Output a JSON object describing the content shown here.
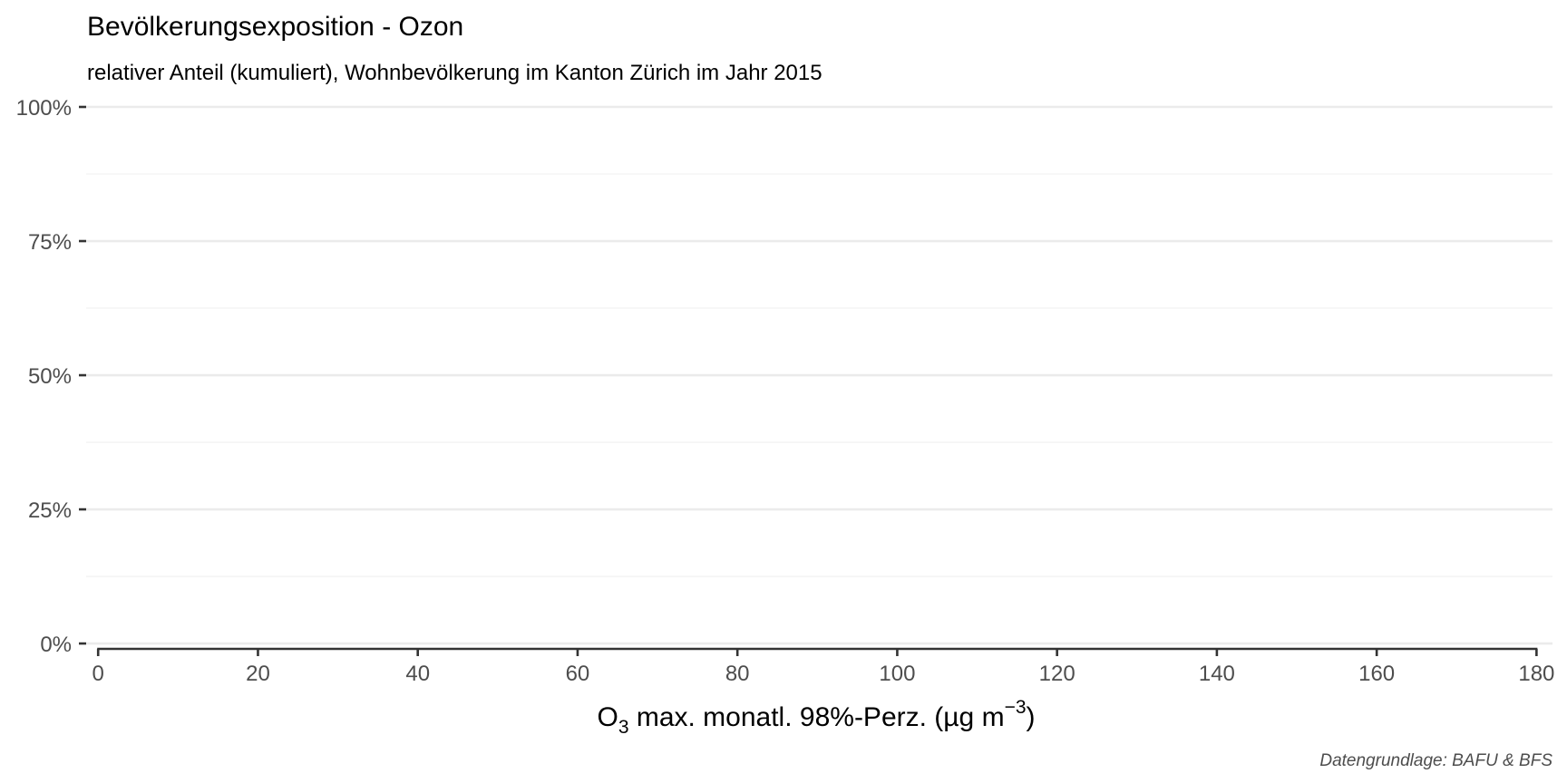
{
  "chart_data": {
    "type": "line",
    "title": "Bevölkerungsexposition - Ozon",
    "subtitle": "relativer Anteil (kumuliert), Wohnbevölkerung im Kanton Zürich im Jahr 2015",
    "xlabel": {
      "base": "O",
      "subscript": "3",
      "text": " max. monatl. 98%-Perz. (µg m",
      "superscript": "−3",
      "close": ")"
    },
    "ylabel": "",
    "caption": "Datengrundlage: BAFU & BFS",
    "x_ticks": [
      0,
      20,
      40,
      60,
      80,
      100,
      120,
      140,
      160,
      180
    ],
    "x_tick_labels": [
      "0",
      "20",
      "40",
      "60",
      "80",
      "100",
      "120",
      "140",
      "160",
      "180"
    ],
    "xlim": [
      -1.5,
      182
    ],
    "y_ticks": [
      0,
      0.25,
      0.5,
      0.75,
      1
    ],
    "y_tick_labels": [
      "0%",
      "25%",
      "50%",
      "75%",
      "100%"
    ],
    "y_minor_ticks": [
      0.125,
      0.375,
      0.625,
      0.875
    ],
    "ylim": [
      -0.01,
      1
    ],
    "grid": true,
    "series": []
  },
  "colors": {
    "major_grid": "#ebebeb",
    "minor_grid": "#f2f2f2",
    "axis_line": "#333333",
    "tick_text": "#4d4d4d"
  }
}
